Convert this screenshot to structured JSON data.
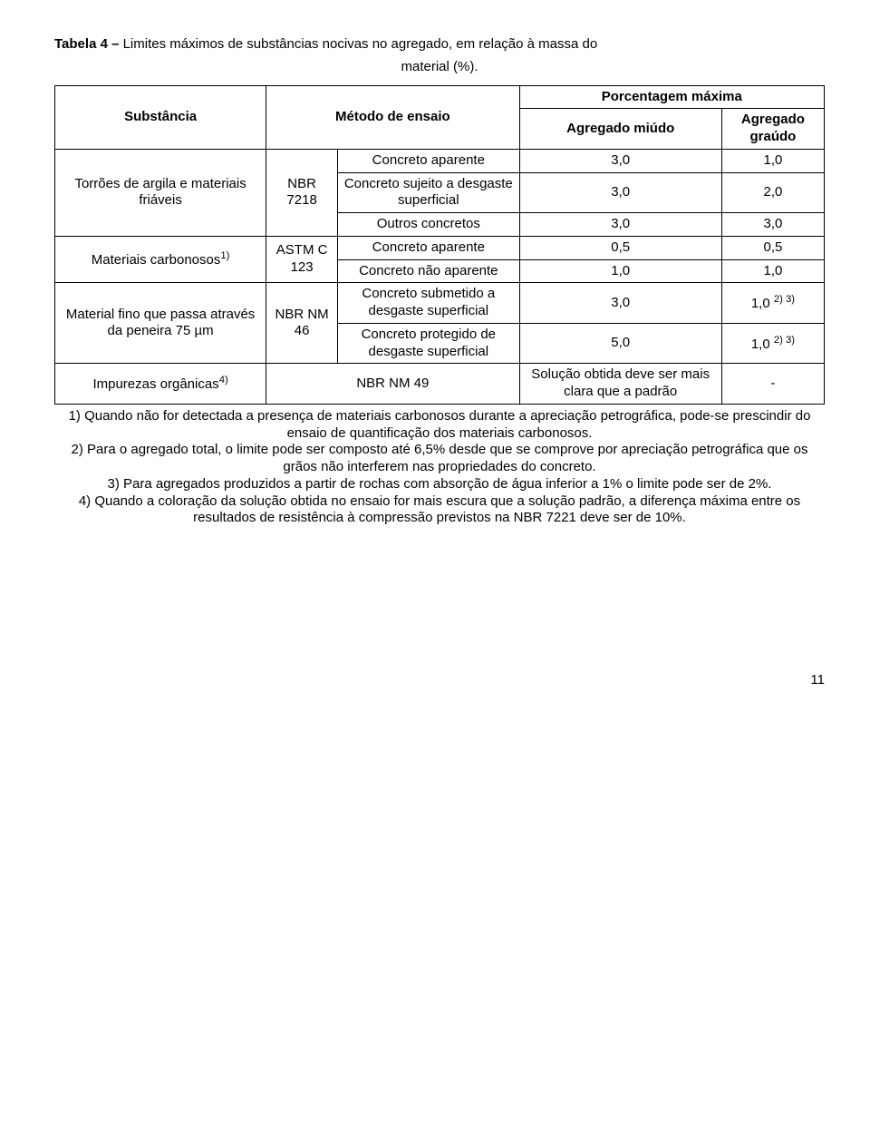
{
  "title_prefix": "Tabela 4 – ",
  "title_rest": "Limites máximos de substâncias nocivas no agregado, em relação à massa do",
  "title_line2": "material (%).",
  "headers": {
    "substancia": "Substância",
    "metodo": "Método de ensaio",
    "porcentagem": "Porcentagem máxima",
    "miudo": "Agregado miúdo",
    "graudo": "Agregado graúdo"
  },
  "rows": {
    "r1": {
      "subst": "Torrões de argila e materiais friáveis",
      "metodo": "NBR 7218",
      "c1": "Concreto aparente",
      "v1a": "3,0",
      "v1b": "1,0",
      "c2": "Concreto sujeito a desgaste superficial",
      "v2a": "3,0",
      "v2b": "2,0",
      "c3": "Outros concretos",
      "v3a": "3,0",
      "v3b": "3,0"
    },
    "r2": {
      "subst_pre": "Materiais carbonosos",
      "subst_sup": "1)",
      "metodo": "ASTM C 123",
      "c1": "Concreto aparente",
      "v1a": "0,5",
      "v1b": "0,5",
      "c2": "Concreto não aparente",
      "v2a": "1,0",
      "v2b": "1,0"
    },
    "r3": {
      "subst": "Material fino que passa através da peneira 75 µm",
      "metodo": "NBR NM 46",
      "c1": "Concreto submetido a desgaste superficial",
      "v1a": "3,0",
      "v1b_pre": "1,0 ",
      "v1b_sup": "2) 3)",
      "c2": "Concreto protegido de desgaste superficial",
      "v2a": "5,0",
      "v2b_pre": "1,0 ",
      "v2b_sup": "2) 3)"
    },
    "r4": {
      "subst_pre": "Impurezas orgânicas",
      "subst_sup": "4)",
      "metodo": "NBR NM 49",
      "miudo": "Solução obtida deve ser mais clara que a padrão",
      "graudo": "-"
    }
  },
  "notes": {
    "n1": "1) Quando não for detectada a presença de materiais carbonosos durante a apreciação petrográfica, pode-se prescindir do ensaio  de quantificação dos materiais carbonosos.",
    "n2": "2) Para o agregado total, o limite pode ser composto até 6,5% desde que se comprove por apreciação petrográfica que os grãos não interferem nas propriedades do concreto.",
    "n3": "3) Para agregados produzidos a partir de rochas com absorção de água inferior a 1% o limite pode ser de 2%.",
    "n4": "4) Quando a coloração da solução obtida no ensaio for mais escura que a solução padrão, a diferença máxima entre os resultados de resistência à compressão previstos na NBR 7221 deve ser de 10%."
  },
  "page_number": "11"
}
